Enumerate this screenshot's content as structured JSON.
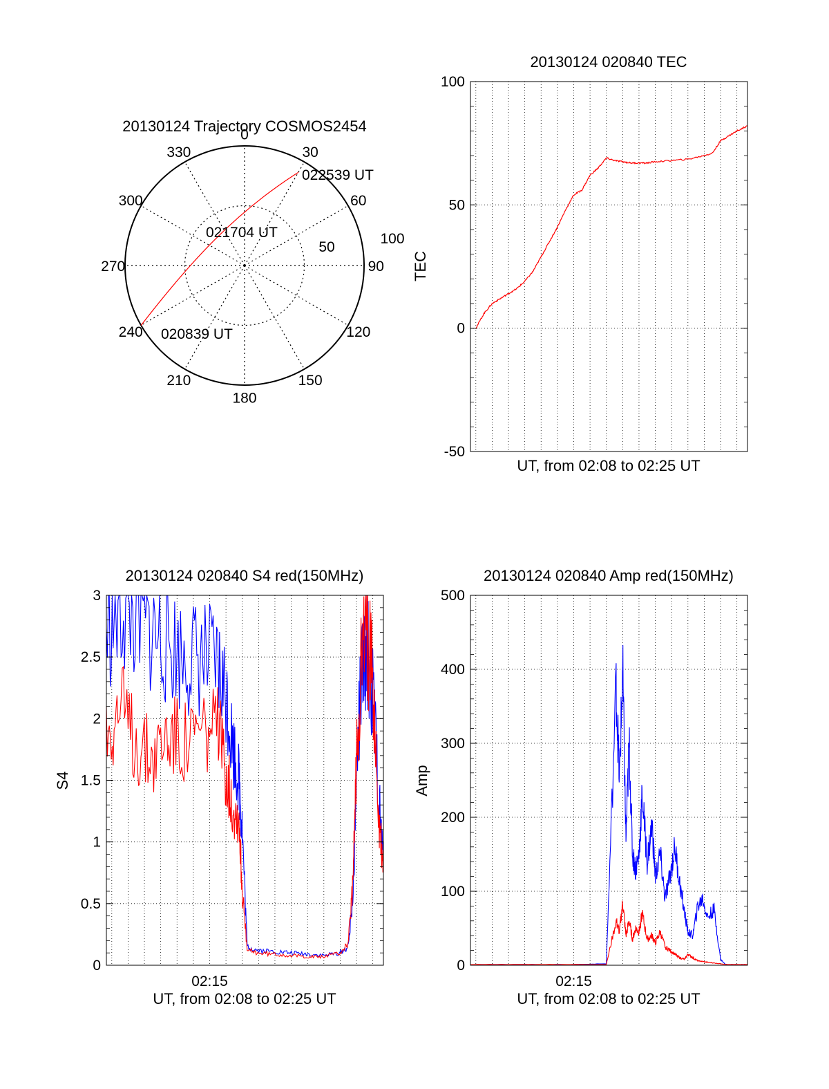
{
  "colors": {
    "red": "#ff0000",
    "blue": "#0000ff",
    "black": "#000000"
  },
  "chart_data": [
    {
      "id": "polar",
      "type": "scatter",
      "subtype": "polar-trajectory",
      "title": "20130124 Trajectory COSMOS2454",
      "azimuth_labels": [
        "0",
        "30",
        "60",
        "90",
        "120",
        "150",
        "180",
        "210",
        "240",
        "270",
        "300",
        "330"
      ],
      "radial_labels": [
        "50",
        "100"
      ],
      "annotations": [
        {
          "text": "022539 UT",
          "az": 30,
          "r": 90
        },
        {
          "text": "021704 UT",
          "az": 300,
          "r": 22
        },
        {
          "text": "020839 UT",
          "az": 240,
          "r": 100
        }
      ],
      "trajectory": {
        "az_start": 240,
        "az_end": 30,
        "r_start": 100,
        "r_end": 90,
        "color": "#ff0000"
      }
    },
    {
      "id": "tec",
      "type": "line",
      "title": "20130124 020840 TEC",
      "xlabel": "UT, from 02:08 to 02:25 UT",
      "ylabel": "TEC",
      "xlim": [
        8.67,
        25.65
      ],
      "ylim": [
        -50,
        100
      ],
      "yticks": [
        "100",
        "50",
        "0",
        "-50"
      ],
      "xgrid": [
        9,
        10,
        11,
        12,
        13,
        14,
        15,
        16,
        17,
        18,
        19,
        20,
        21,
        22,
        23,
        24,
        25
      ],
      "series": [
        {
          "color": "#ff0000",
          "x": [
            9.0,
            9.5,
            10.0,
            10.5,
            11.0,
            11.5,
            12.0,
            12.5,
            13.0,
            13.5,
            14.0,
            14.5,
            15.0,
            15.5,
            16.0,
            16.5,
            17.0,
            17.5,
            18.0,
            18.5,
            19.0,
            19.5,
            20.0,
            21.0,
            22.0,
            23.0,
            23.5,
            24.0,
            24.5,
            25.0,
            25.65
          ],
          "y": [
            0,
            6,
            10,
            12,
            14,
            16,
            19,
            23,
            29,
            35,
            41,
            48,
            54,
            56,
            62,
            65,
            69,
            68,
            67.5,
            67,
            67,
            67,
            67.5,
            68,
            68.5,
            70,
            71,
            76,
            78,
            80,
            82
          ]
        }
      ]
    },
    {
      "id": "s4",
      "type": "line",
      "title": "20130124 020840 S4 red(150MHz)",
      "xlabel": "UT, from 02:08 to 02:25 UT",
      "ylabel": "S4",
      "xlim": [
        8.67,
        25.65
      ],
      "ylim": [
        0,
        3
      ],
      "yticks": [
        "3",
        "2.5",
        "2",
        "1.5",
        "1",
        "0.5",
        "0"
      ],
      "xticks": [
        {
          "v": 15,
          "label": "02:15"
        }
      ],
      "xgrid": [
        9,
        10,
        11,
        12,
        13,
        14,
        15,
        16,
        17,
        18,
        19,
        20,
        21,
        22,
        23,
        24,
        25
      ],
      "series": [
        {
          "color": "#0000ff",
          "x": [
            8.67,
            9.5,
            10.5,
            11.5,
            12.5,
            13.5,
            14.5,
            15.5,
            16.0,
            16.4,
            16.8,
            17.0,
            17.3,
            18.0,
            19.0,
            20.0,
            21.0,
            22.0,
            23.0,
            23.5,
            23.8,
            24.0,
            24.3,
            24.6,
            25.0,
            25.4,
            25.65
          ],
          "y": [
            2.7,
            2.9,
            2.8,
            2.7,
            2.6,
            2.5,
            2.5,
            2.4,
            2.2,
            1.8,
            1.5,
            1.1,
            0.15,
            0.12,
            0.11,
            0.1,
            0.09,
            0.08,
            0.1,
            0.15,
            0.6,
            1.6,
            2.3,
            2.6,
            2.2,
            1.3,
            0.8
          ]
        },
        {
          "color": "#ff0000",
          "x": [
            8.67,
            9.5,
            10.5,
            11.5,
            12.5,
            13.5,
            14.5,
            15.5,
            16.0,
            16.4,
            16.8,
            17.0,
            17.3,
            18.0,
            19.0,
            20.0,
            21.0,
            22.0,
            23.0,
            23.5,
            23.8,
            24.0,
            24.3,
            24.6,
            25.0,
            25.4,
            25.65
          ],
          "y": [
            1.9,
            2.1,
            1.8,
            1.7,
            1.9,
            1.8,
            1.9,
            1.9,
            1.6,
            1.3,
            1.2,
            0.6,
            0.12,
            0.1,
            0.09,
            0.08,
            0.07,
            0.07,
            0.1,
            0.18,
            0.7,
            1.7,
            2.5,
            2.7,
            2.3,
            1.1,
            0.8
          ]
        }
      ]
    },
    {
      "id": "amp",
      "type": "line",
      "title": "20130124 020840 Amp red(150MHz)",
      "xlabel": "UT, from 02:08 to 02:25 UT",
      "ylabel": "Amp",
      "xlim": [
        8.67,
        25.65
      ],
      "ylim": [
        0,
        500
      ],
      "yticks": [
        "500",
        "400",
        "300",
        "200",
        "100",
        "0"
      ],
      "xticks": [
        {
          "v": 15,
          "label": "02:15"
        }
      ],
      "xgrid": [
        9,
        10,
        11,
        12,
        13,
        14,
        15,
        16,
        17,
        18,
        19,
        20,
        21,
        22,
        23,
        24,
        25
      ],
      "series": [
        {
          "color": "#0000ff",
          "x": [
            8.67,
            12.0,
            15.0,
            17.0,
            17.6,
            17.8,
            18.0,
            18.2,
            18.4,
            18.6,
            18.8,
            19.0,
            19.2,
            19.5,
            19.8,
            20.0,
            20.3,
            20.6,
            20.9,
            21.2,
            21.5,
            21.8,
            22.0,
            22.3,
            22.6,
            22.9,
            23.2,
            23.6,
            24.0,
            24.3,
            25.0,
            25.65
          ],
          "y": [
            1,
            1,
            1,
            2,
            380,
            250,
            400,
            170,
            300,
            150,
            130,
            150,
            230,
            140,
            190,
            120,
            150,
            90,
            120,
            160,
            110,
            70,
            45,
            40,
            80,
            90,
            65,
            75,
            8,
            1,
            1,
            1
          ]
        },
        {
          "color": "#ff0000",
          "x": [
            8.67,
            12.0,
            15.0,
            17.0,
            17.6,
            17.8,
            18.0,
            18.2,
            18.4,
            18.6,
            18.8,
            19.0,
            19.2,
            19.5,
            19.8,
            20.0,
            20.3,
            20.6,
            20.9,
            21.2,
            21.5,
            21.8,
            22.0,
            22.3,
            22.6,
            22.9,
            23.2,
            23.6,
            24.0,
            24.3,
            25.0,
            25.65
          ],
          "y": [
            1,
            1,
            1,
            1,
            60,
            45,
            85,
            40,
            60,
            35,
            50,
            45,
            70,
            35,
            40,
            30,
            45,
            25,
            20,
            15,
            10,
            8,
            15,
            10,
            6,
            5,
            4,
            3,
            2,
            1,
            1,
            1
          ]
        }
      ]
    }
  ]
}
